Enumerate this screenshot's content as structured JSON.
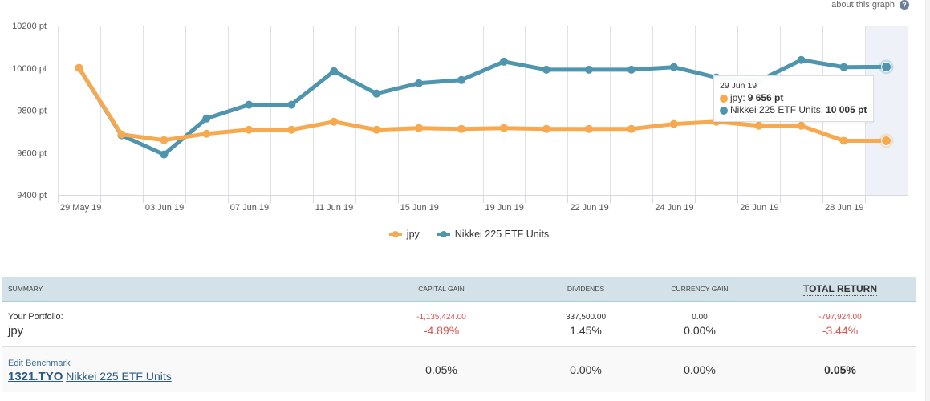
{
  "about_link": {
    "label": "about this graph",
    "icon": "question-circle-icon"
  },
  "tooltip": {
    "date": "29 Jun 19",
    "rows": [
      {
        "series": "jpy",
        "label": "jpy: ",
        "value": "9 656 pt",
        "color": "#f7a94f"
      },
      {
        "series": "Nikkei 225 ETF Units",
        "label": "Nikkei 225 ETF Units: ",
        "value": "10 005 pt",
        "color": "#4f95ad"
      }
    ]
  },
  "chart_data": {
    "type": "line",
    "title": "",
    "xlabel": "",
    "ylabel": "",
    "ylim": [
      9400,
      10200
    ],
    "yticks": [
      10200,
      10000,
      9800,
      9600,
      9400
    ],
    "ytick_labels": [
      "10200 pt",
      "10000 pt",
      "9800 pt",
      "9600 pt",
      "9400 pt"
    ],
    "grid": true,
    "legend_position": "bottom-center",
    "x": [
      "29 May 19",
      "31 May 19",
      "03 Jun 19",
      "05 Jun 19",
      "07 Jun 19",
      "10 Jun 19",
      "11 Jun 19",
      "13 Jun 19",
      "15 Jun 19",
      "17 Jun 19",
      "19 Jun 19",
      "21 Jun 19",
      "22 Jun 19",
      "23 Jun 19",
      "24 Jun 19",
      "25 Jun 19",
      "26 Jun 19",
      "27 Jun 19",
      "28 Jun 19",
      "29 Jun 19"
    ],
    "xtick_labels": [
      {
        "index": 0,
        "label": "29 May 19"
      },
      {
        "index": 2,
        "label": "03 Jun 19"
      },
      {
        "index": 4,
        "label": "07 Jun 19"
      },
      {
        "index": 6,
        "label": "11 Jun 19"
      },
      {
        "index": 8,
        "label": "15 Jun 19"
      },
      {
        "index": 10,
        "label": "19 Jun 19"
      },
      {
        "index": 12,
        "label": "22 Jun 19"
      },
      {
        "index": 14,
        "label": "24 Jun 19"
      },
      {
        "index": 16,
        "label": "26 Jun 19"
      },
      {
        "index": 18,
        "label": "28 Jun 19"
      }
    ],
    "highlighted_index": 19,
    "series": [
      {
        "name": "jpy",
        "color": "#f7a94f",
        "values": [
          10000,
          9686,
          9659,
          9689,
          9708,
          9708,
          9746,
          9708,
          9716,
          9712,
          9716,
          9712,
          9712,
          9712,
          9735,
          9746,
          9727,
          9727,
          9656,
          9656
        ]
      },
      {
        "name": "Nikkei 225 ETF Units",
        "color": "#4f95ad",
        "values": [
          10000,
          9682,
          9591,
          9761,
          9826,
          9826,
          9985,
          9879,
          9928,
          9943,
          10030,
          9992,
          9992,
          9992,
          10004,
          9955,
          9939,
          10038,
          10004,
          10005
        ]
      }
    ]
  },
  "summary": {
    "headers": {
      "summary": "Summary",
      "capital_gain": "Capital Gain",
      "dividends": "Dividends",
      "currency_gain": "Currency Gain",
      "total_return": "Total Return"
    },
    "portfolio": {
      "label": "Your Portfolio:",
      "name": "jpy",
      "capital_gain_amount": "-1,135,424.00",
      "capital_gain_pct": "-4.89%",
      "dividends_amount": "337,500.00",
      "dividends_pct": "1.45%",
      "currency_gain_amount": "0.00",
      "currency_gain_pct": "0.00%",
      "total_return_amount": "-797,924.00",
      "total_return_pct": "-3.44%"
    },
    "benchmark": {
      "edit_label": "Edit Benchmark",
      "ticker": "1321.TYO",
      "name": "Nikkei 225 ETF Units",
      "capital_gain_pct": "0.05%",
      "dividends_pct": "0.00%",
      "currency_gain_pct": "0.00%",
      "total_return_pct": "0.05%"
    },
    "colors": {
      "negative": "#d9534f",
      "header_bg": "#d2e2e8"
    }
  }
}
